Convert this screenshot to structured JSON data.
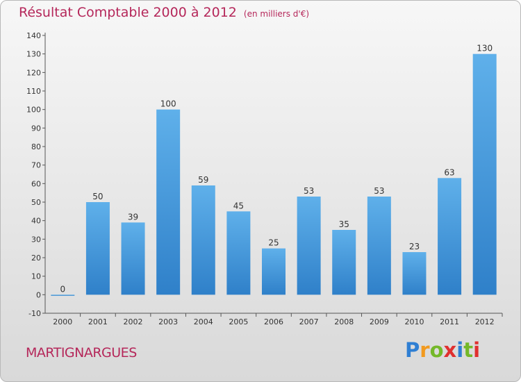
{
  "title": "Résultat Comptable 2000 à 2012",
  "subtitle": "(en milliers d'€)",
  "commune": "MARTIGNARGUES",
  "logo": [
    "P",
    "r",
    "o",
    "x",
    "i",
    "t",
    "i"
  ],
  "colors": {
    "bar": "#3a8fd6",
    "bar_light": "#5fb0ea",
    "title": "#b5275a",
    "axis": "#555555"
  },
  "chart_data": {
    "type": "bar",
    "categories": [
      "2000",
      "2001",
      "2002",
      "2003",
      "2004",
      "2005",
      "2006",
      "2007",
      "2008",
      "2009",
      "2010",
      "2011",
      "2012"
    ],
    "values": [
      0,
      50,
      39,
      100,
      59,
      45,
      25,
      53,
      35,
      53,
      23,
      63,
      130
    ],
    "yticks": [
      -10,
      0,
      10,
      20,
      30,
      40,
      50,
      60,
      70,
      80,
      90,
      100,
      110,
      120,
      130,
      140
    ],
    "ylim": [
      -10,
      140
    ],
    "grid": false,
    "legend": "none"
  }
}
